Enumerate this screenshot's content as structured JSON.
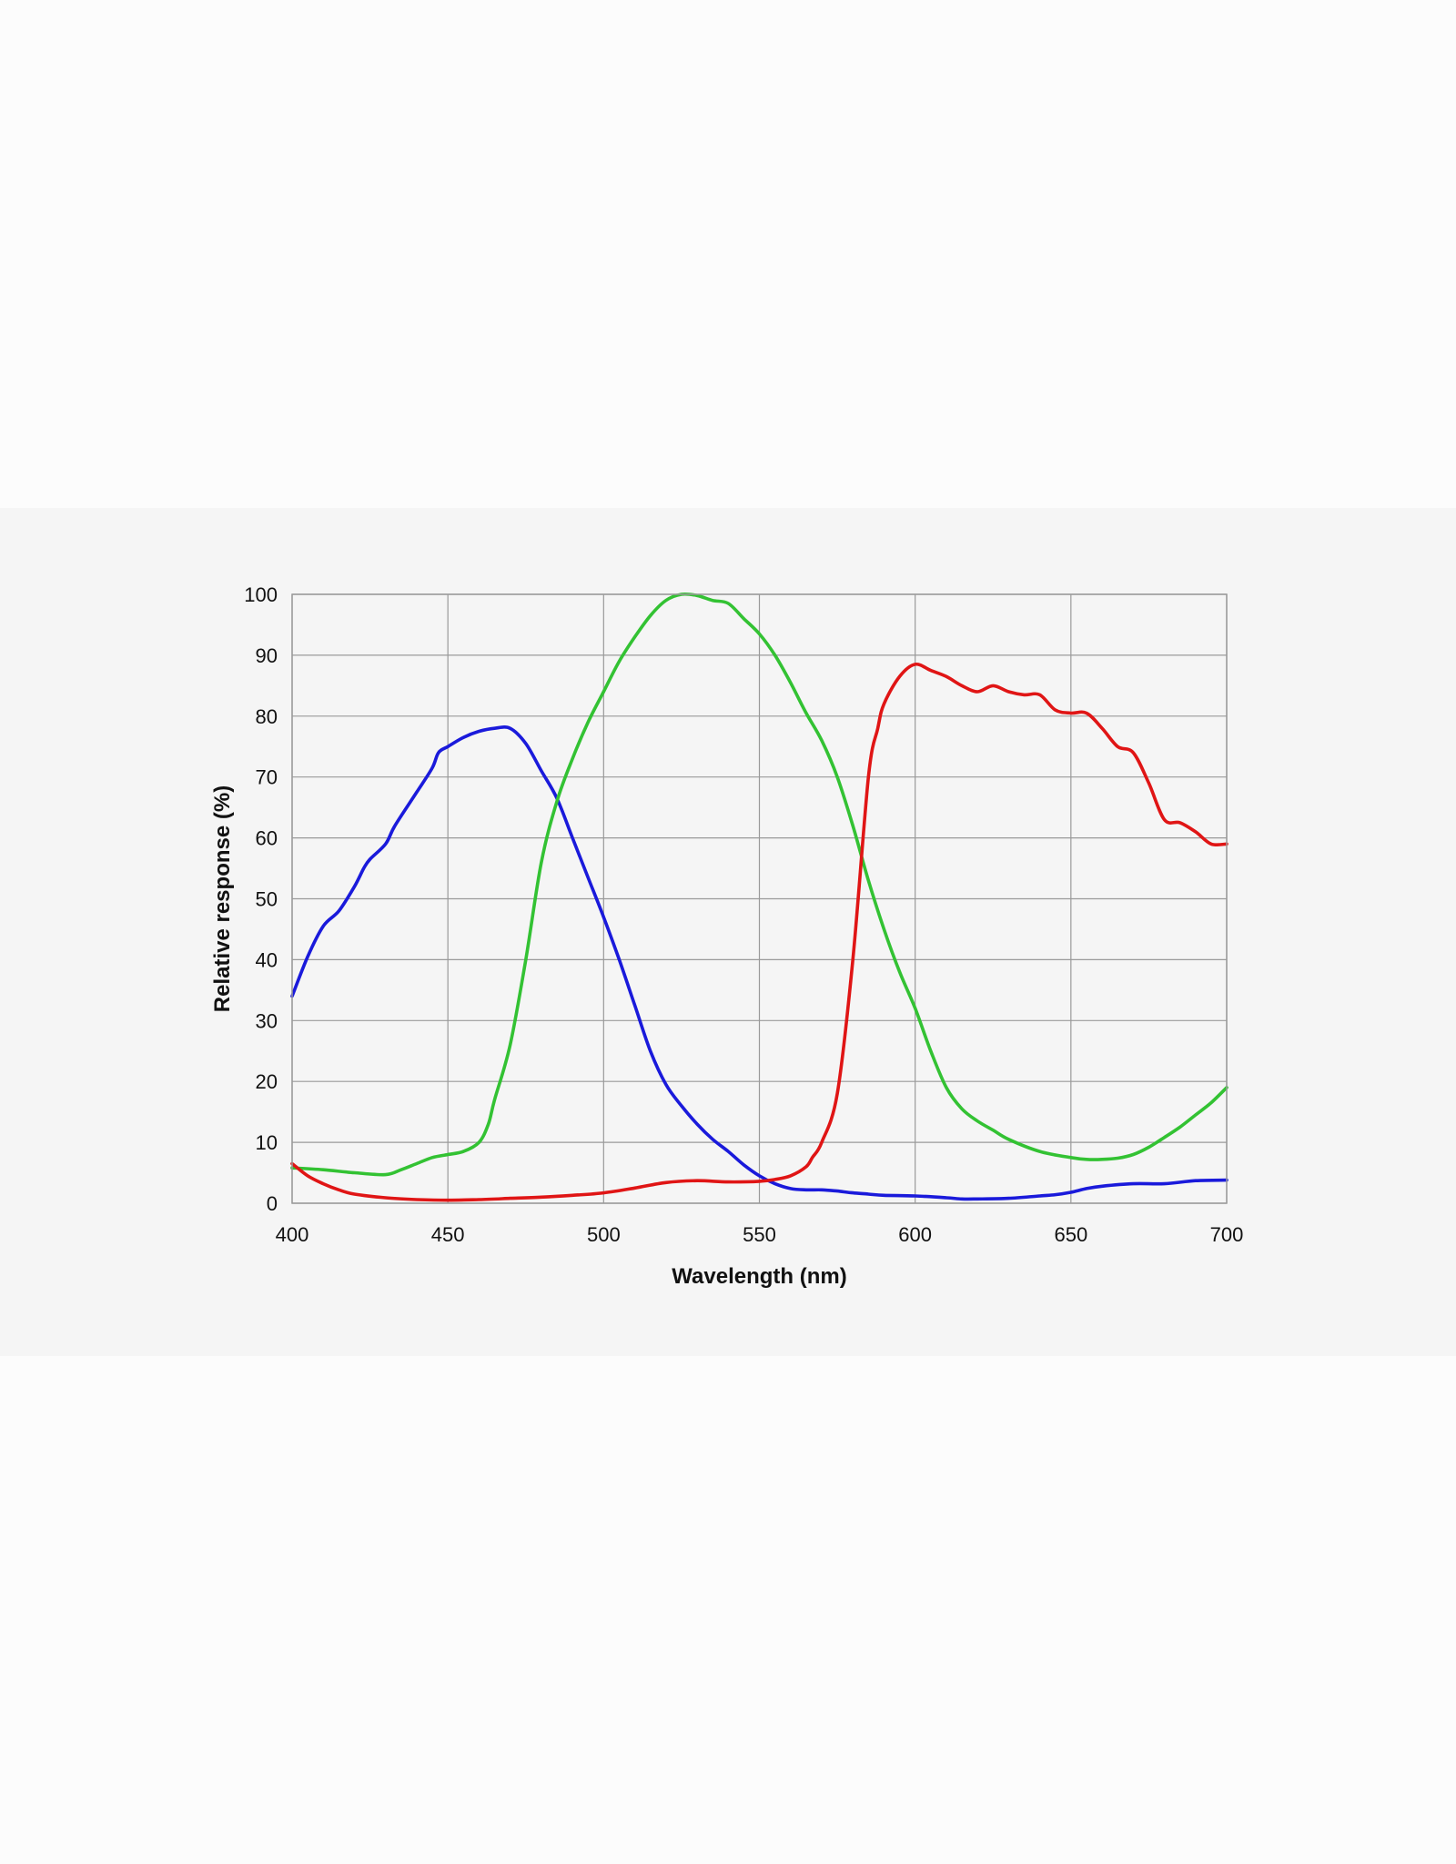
{
  "chart_data": {
    "type": "line",
    "xlabel": "Wavelength (nm)",
    "ylabel": "Relative response (%)",
    "xlim": [
      400,
      700
    ],
    "ylim": [
      0,
      100
    ],
    "x_ticks": [
      400,
      450,
      500,
      550,
      600,
      650,
      700
    ],
    "y_ticks": [
      0,
      10,
      20,
      30,
      40,
      50,
      60,
      70,
      80,
      90,
      100
    ],
    "grid": true,
    "legend": "none",
    "series": [
      {
        "color": "#1a1adb",
        "x": [
          400,
          405,
          410,
          415,
          420,
          423,
          425,
          430,
          433,
          440,
          445,
          447,
          450,
          455,
          460,
          465,
          470,
          475,
          480,
          485,
          490,
          495,
          500,
          505,
          510,
          515,
          520,
          525,
          530,
          535,
          540,
          545,
          550,
          555,
          560,
          565,
          570,
          575,
          580,
          585,
          590,
          600,
          610,
          615,
          620,
          630,
          640,
          645,
          650,
          655,
          660,
          670,
          680,
          690,
          700
        ],
        "y": [
          34,
          40.5,
          45.5,
          48,
          52,
          55,
          56.5,
          59,
          62,
          67.5,
          71.5,
          74,
          75,
          76.5,
          77.5,
          78,
          78,
          75.5,
          71,
          66.5,
          60,
          53.5,
          47,
          40,
          32.5,
          25,
          19.5,
          16,
          13,
          10.5,
          8.5,
          6.3,
          4.5,
          3.2,
          2.4,
          2.2,
          2.2,
          2,
          1.7,
          1.5,
          1.3,
          1.2,
          0.9,
          0.7,
          0.7,
          0.8,
          1.2,
          1.4,
          1.8,
          2.4,
          2.8,
          3.2,
          3.2,
          3.7,
          3.8
        ]
      },
      {
        "color": "#33c233",
        "x": [
          400,
          410,
          420,
          430,
          435,
          440,
          445,
          450,
          455,
          460,
          463,
          465,
          470,
          475,
          480,
          485,
          490,
          495,
          500,
          505,
          510,
          515,
          520,
          525,
          530,
          535,
          540,
          545,
          550,
          555,
          560,
          565,
          570,
          575,
          580,
          585,
          590,
          595,
          600,
          605,
          610,
          615,
          620,
          625,
          630,
          640,
          650,
          655,
          660,
          665,
          670,
          675,
          680,
          685,
          690,
          695,
          700
        ],
        "y": [
          5.8,
          5.5,
          5,
          4.7,
          5.5,
          6.5,
          7.5,
          8,
          8.5,
          10,
          13,
          17,
          26,
          40,
          56,
          66,
          73,
          79,
          84,
          89,
          93,
          96.5,
          99,
          100,
          99.8,
          99,
          98.5,
          96,
          93.5,
          90,
          85.5,
          80.5,
          76,
          70,
          62,
          53,
          45,
          38,
          32,
          25,
          19,
          15.5,
          13.5,
          12,
          10.5,
          8.5,
          7.5,
          7.2,
          7.2,
          7.4,
          8,
          9.2,
          10.8,
          12.5,
          14.5,
          16.5,
          19
        ]
      },
      {
        "color": "#e01515",
        "x": [
          400,
          405,
          410,
          415,
          420,
          430,
          440,
          450,
          460,
          470,
          480,
          490,
          500,
          510,
          520,
          530,
          540,
          550,
          555,
          560,
          565,
          567,
          570,
          575,
          580,
          585,
          588,
          590,
          595,
          600,
          605,
          610,
          615,
          620,
          625,
          630,
          635,
          640,
          645,
          650,
          655,
          660,
          665,
          670,
          675,
          680,
          685,
          690,
          695,
          700
        ],
        "y": [
          6.5,
          4.5,
          3.2,
          2.2,
          1.5,
          0.9,
          0.6,
          0.5,
          0.6,
          0.8,
          1,
          1.3,
          1.7,
          2.5,
          3.4,
          3.7,
          3.5,
          3.6,
          3.9,
          4.5,
          6,
          7.5,
          10,
          18,
          40,
          70,
          78,
          82,
          86.5,
          88.5,
          87.5,
          86.5,
          85,
          84,
          85,
          84,
          83.5,
          83.5,
          81,
          80.5,
          80.5,
          78,
          75,
          74,
          69,
          63,
          62.5,
          61,
          59,
          59
        ]
      }
    ]
  }
}
